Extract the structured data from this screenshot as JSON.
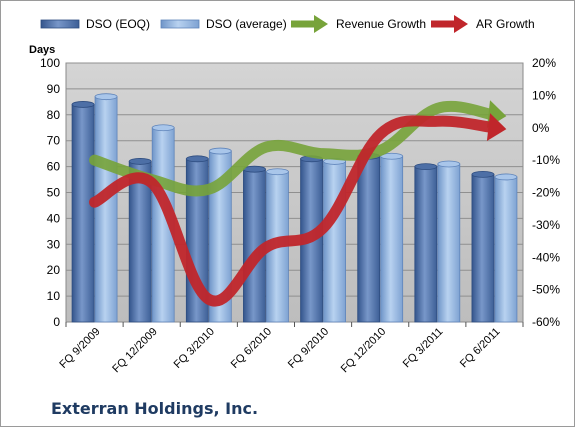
{
  "company": "Exterran Holdings, Inc.",
  "colors": {
    "dso_eoq": "#5a7db5",
    "dso_average": "#93b6e2",
    "revenue_growth": "#77a33a",
    "ar_growth": "#c0262b",
    "plot_bg": "#c6c6c6"
  },
  "chart_data": {
    "type": "bar",
    "categories": [
      "FQ 9/2009",
      "FQ 12/2009",
      "FQ 3/2010",
      "FQ 6/2010",
      "FQ 9/2010",
      "FQ 12/2010",
      "FQ 3/2011",
      "FQ 6/2011"
    ],
    "y_title": "Days",
    "ylim": [
      0,
      100
    ],
    "y_ticks": [
      "0",
      "10",
      "20",
      "30",
      "40",
      "50",
      "60",
      "70",
      "80",
      "90",
      "100"
    ],
    "y2lim": [
      -0.6,
      0.2
    ],
    "y2_ticks": [
      "-60%",
      "-50%",
      "-40%",
      "-30%",
      "-20%",
      "-10%",
      "0%",
      "10%",
      "20%"
    ],
    "grid": true,
    "legend_position": "top",
    "series": [
      {
        "name": "DSO (EOQ)",
        "kind": "bar",
        "axis": "left",
        "values": [
          84,
          62,
          63,
          59,
          63,
          64,
          60,
          57
        ]
      },
      {
        "name": "DSO (average)",
        "kind": "bar",
        "axis": "left",
        "values": [
          87,
          75,
          66,
          58,
          62,
          64,
          61,
          56
        ]
      },
      {
        "name": "Revenue Growth",
        "kind": "arrow-line",
        "axis": "right",
        "values": [
          -0.1,
          -0.16,
          -0.19,
          -0.06,
          -0.08,
          -0.07,
          0.06,
          0.04
        ]
      },
      {
        "name": "AR Growth",
        "kind": "arrow-line",
        "axis": "right",
        "values": [
          -0.23,
          -0.17,
          -0.53,
          -0.37,
          -0.31,
          -0.02,
          0.02,
          0.0
        ]
      }
    ]
  }
}
